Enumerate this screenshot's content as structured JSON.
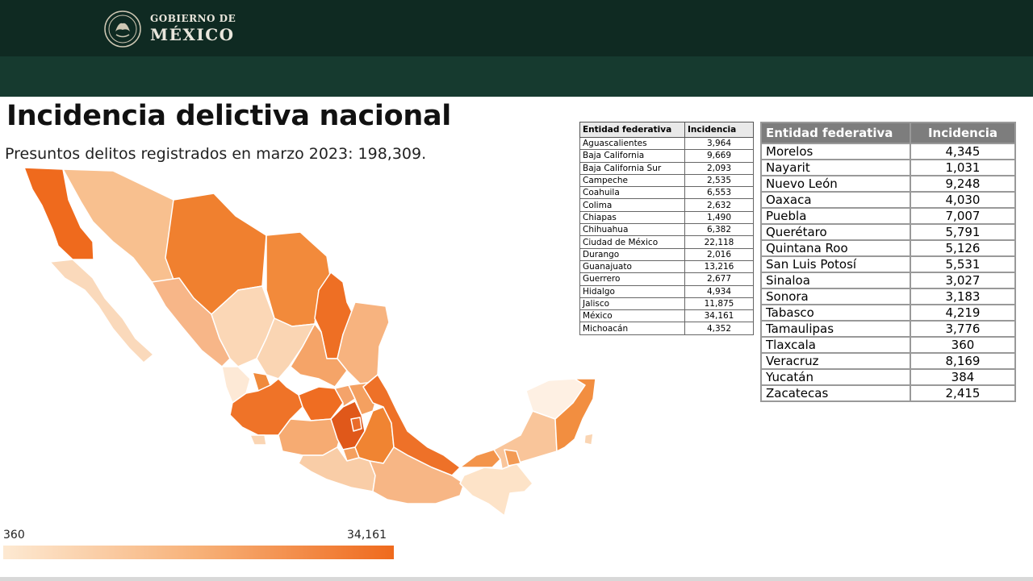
{
  "header": {
    "brand_small": "GOBIERNO DE",
    "brand_big": "MÉXICO"
  },
  "title": "Incidencia delictiva nacional",
  "subtitle": "Presuntos delitos registrados en marzo 2023: 198,309.",
  "legend": {
    "min": "360",
    "max": "34,161",
    "color_min": "#fde9d2",
    "color_max": "#ef6a1d"
  },
  "table_left": {
    "headers": [
      "Entidad federativa",
      "Incidencia"
    ],
    "rows": [
      [
        "Aguascalientes",
        "3,964"
      ],
      [
        "Baja California",
        "9,669"
      ],
      [
        "Baja California Sur",
        "2,093"
      ],
      [
        "Campeche",
        "2,535"
      ],
      [
        "Coahuila",
        "6,553"
      ],
      [
        "Colima",
        "2,632"
      ],
      [
        "Chiapas",
        "1,490"
      ],
      [
        "Chihuahua",
        "6,382"
      ],
      [
        "Ciudad de México",
        "22,118"
      ],
      [
        "Durango",
        "2,016"
      ],
      [
        "Guanajuato",
        "13,216"
      ],
      [
        "Guerrero",
        "2,677"
      ],
      [
        "Hidalgo",
        "4,934"
      ],
      [
        "Jalisco",
        "11,875"
      ],
      [
        "México",
        "34,161"
      ],
      [
        "Michoacán",
        "4,352"
      ]
    ]
  },
  "table_right": {
    "headers": [
      "Entidad federativa",
      "Incidencia"
    ],
    "rows": [
      [
        "Morelos",
        "4,345"
      ],
      [
        "Nayarit",
        "1,031"
      ],
      [
        "Nuevo León",
        "9,248"
      ],
      [
        "Oaxaca",
        "4,030"
      ],
      [
        "Puebla",
        "7,007"
      ],
      [
        "Querétaro",
        "5,791"
      ],
      [
        "Quintana Roo",
        "5,126"
      ],
      [
        "San Luis Potosí",
        "5,531"
      ],
      [
        "Sinaloa",
        "3,027"
      ],
      [
        "Sonora",
        "3,183"
      ],
      [
        "Tabasco",
        "4,219"
      ],
      [
        "Tamaulipas",
        "3,776"
      ],
      [
        "Tlaxcala",
        "360"
      ],
      [
        "Veracruz",
        "8,169"
      ],
      [
        "Yucatán",
        "384"
      ],
      [
        "Zacatecas",
        "2,415"
      ]
    ]
  }
}
